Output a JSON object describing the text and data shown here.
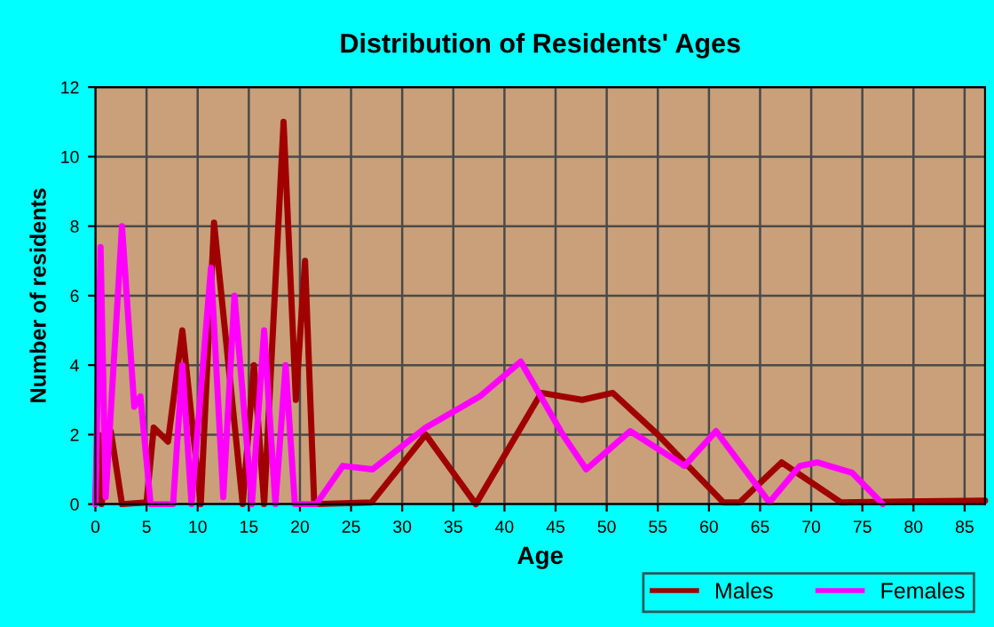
{
  "chart_data": {
    "type": "line",
    "title": "Distribution of Residents' Ages",
    "xlabel": "Age",
    "ylabel": "Number of residents",
    "xlim": [
      0,
      87
    ],
    "xticks": [
      0,
      5,
      10,
      15,
      20,
      25,
      30,
      35,
      40,
      45,
      50,
      55,
      60,
      65,
      70,
      75,
      80,
      85
    ],
    "ylim": [
      0,
      12
    ],
    "yticks": [
      0,
      2,
      4,
      6,
      8,
      10,
      12
    ],
    "grid": true,
    "legend": "bottom right",
    "marker": "none",
    "line_style": "solid",
    "series": [
      {
        "name": "Males",
        "color": "#a00000",
        "x": [
          0,
          0.3,
          0.6,
          1.5,
          2.6,
          5,
          5.7,
          7.1,
          8.5,
          10.3,
          11.6,
          14.4,
          15.5,
          16.5,
          18.4,
          19.6,
          20.5,
          21.4,
          27,
          32.3,
          37.2,
          43.6,
          47.6,
          50.6,
          55,
          61.4,
          63,
          67.1,
          72.9,
          87
        ],
        "values": [
          0.1,
          2,
          0,
          2.1,
          0,
          0.05,
          2.2,
          1.8,
          5,
          0,
          8.1,
          0,
          4,
          0,
          11,
          3,
          7,
          0,
          0.05,
          2,
          0,
          3.2,
          3,
          3.2,
          2,
          0.05,
          0.05,
          1.2,
          0.05,
          0.1
        ]
      },
      {
        "name": "Females",
        "color": "#ff00ff",
        "x": [
          0,
          0.5,
          1,
          2.6,
          3.8,
          4.4,
          5.4,
          7.6,
          8.5,
          9.4,
          11.3,
          12.5,
          13.6,
          15.3,
          16.5,
          17.6,
          18.6,
          19.5,
          21.6,
          24.2,
          27.1,
          32.3,
          37.6,
          41.6,
          45.7,
          48,
          52.3,
          57.6,
          60.7,
          65.9,
          68.9,
          70.6,
          74,
          77
        ],
        "values": [
          0,
          7.4,
          0.2,
          8,
          2.8,
          3.1,
          0,
          0,
          4,
          0,
          6.8,
          0.2,
          6,
          0,
          5,
          0,
          4,
          0,
          0,
          1.1,
          1,
          2.2,
          3.1,
          4.1,
          2,
          1,
          2.1,
          1.1,
          2.1,
          0.05,
          1.1,
          1.2,
          0.9,
          0
        ]
      }
    ]
  }
}
